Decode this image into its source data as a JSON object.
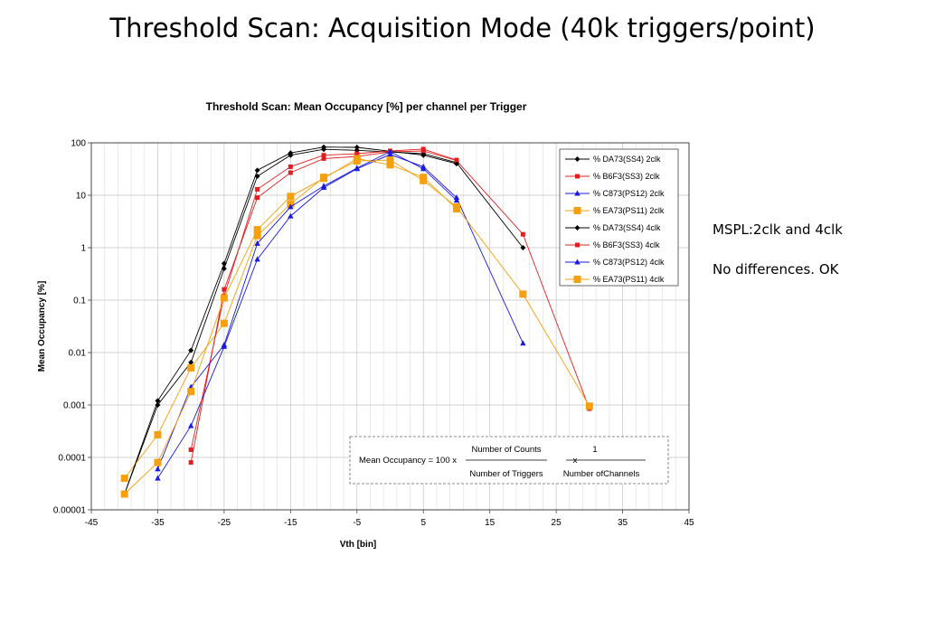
{
  "slide": {
    "title": "Threshold Scan: Acquisition Mode (40k triggers/point)",
    "notes": [
      "MSPL:2clk and 4clk",
      "No differences. OK"
    ]
  },
  "chart_data": {
    "type": "line",
    "title": "Threshold Scan: Mean Occupancy [%] per channel per Trigger",
    "xlabel": "Vth [bin]",
    "ylabel": "Mean Occupancy [%]",
    "xlim": [
      -45,
      45
    ],
    "ylim": [
      1e-05,
      100
    ],
    "yscale": "log",
    "x_ticks": [
      -45,
      -35,
      -25,
      -15,
      -5,
      5,
      15,
      25,
      35,
      45
    ],
    "x_tick_labels": [
      "-45",
      "-35",
      "-25",
      "-15",
      "-5",
      "5",
      "15",
      "25",
      "35",
      "45"
    ],
    "y_ticks": [
      1e-05,
      0.0001,
      0.001,
      0.01,
      0.1,
      1,
      10,
      100
    ],
    "y_tick_labels": [
      "0.00001",
      "0.0001",
      "0.001",
      "0.01",
      "0.1",
      "1",
      "10",
      "100"
    ],
    "grid": true,
    "legend_position": "top-right inside plot",
    "series": [
      {
        "name": "% DA73(SS4) 2clk",
        "color": "#000000",
        "marker": "diamond",
        "points": [
          [
            -40,
            2e-05
          ],
          [
            -35,
            0.001
          ],
          [
            -30,
            0.0065
          ],
          [
            -25,
            0.4
          ],
          [
            -20,
            23
          ],
          [
            -15,
            58
          ],
          [
            -10,
            75
          ],
          [
            -5,
            72
          ],
          [
            5,
            62
          ],
          [
            10,
            42
          ],
          [
            20,
            1.0
          ]
        ]
      },
      {
        "name": "% B6F3(SS3) 2clk",
        "color": "#e02020",
        "marker": "square",
        "points": [
          [
            -30,
            8e-05
          ],
          [
            -25,
            0.16
          ],
          [
            -20,
            9
          ],
          [
            -15,
            27
          ],
          [
            -10,
            50
          ],
          [
            -5,
            55
          ],
          [
            0,
            67
          ],
          [
            5,
            70
          ],
          [
            10,
            46
          ],
          [
            20,
            1.8
          ],
          [
            30,
            0.00085
          ]
        ]
      },
      {
        "name": "% C873(PS12) 2clk",
        "color": "#1a1ae0",
        "marker": "triangle",
        "points": [
          [
            -35,
            4e-05
          ],
          [
            -30,
            0.0004
          ],
          [
            -25,
            0.013
          ],
          [
            -20,
            0.6
          ],
          [
            -15,
            4
          ],
          [
            -10,
            14
          ],
          [
            -5,
            32
          ],
          [
            0,
            60
          ],
          [
            5,
            35
          ],
          [
            10,
            9
          ],
          [
            20,
            0.015
          ]
        ]
      },
      {
        "name": "% EA73(PS11) 2clk",
        "color": "#f5a00c",
        "marker": "bigsquare",
        "points": [
          [
            -40,
            4e-05
          ],
          [
            -35,
            0.00027
          ],
          [
            -30,
            0.0051
          ],
          [
            -25,
            0.036
          ],
          [
            -20,
            1.7
          ],
          [
            -15,
            6.8
          ],
          [
            -10,
            22
          ],
          [
            -5,
            45
          ],
          [
            0,
            47
          ],
          [
            5,
            19
          ],
          [
            10,
            6
          ],
          [
            20,
            0.13
          ],
          [
            30,
            0.00095
          ]
        ]
      },
      {
        "name": "% DA73(SS4) 4clk",
        "color": "#000000",
        "marker": "diamond",
        "points": [
          [
            -40,
            2e-05
          ],
          [
            -35,
            0.0012
          ],
          [
            -30,
            0.011
          ],
          [
            -25,
            0.5
          ],
          [
            -20,
            30
          ],
          [
            -15,
            64
          ],
          [
            -10,
            83
          ],
          [
            -5,
            82
          ],
          [
            5,
            58
          ],
          [
            10,
            40
          ]
        ]
      },
      {
        "name": "% B6F3(SS3) 4clk",
        "color": "#e02020",
        "marker": "square",
        "points": [
          [
            -30,
            0.00014
          ],
          [
            -25,
            0.12
          ],
          [
            -20,
            13
          ],
          [
            -15,
            35
          ],
          [
            -10,
            58
          ],
          [
            -5,
            62
          ],
          [
            0,
            70
          ],
          [
            5,
            76
          ],
          [
            10,
            47
          ]
        ]
      },
      {
        "name": "% C873(PS12) 4clk",
        "color": "#1a1ae0",
        "marker": "triangle",
        "points": [
          [
            -35,
            6e-05
          ],
          [
            -30,
            0.0022
          ],
          [
            -25,
            0.014
          ],
          [
            -20,
            1.2
          ],
          [
            -15,
            6
          ],
          [
            -10,
            15
          ],
          [
            -5,
            33
          ],
          [
            0,
            68
          ],
          [
            5,
            32
          ],
          [
            10,
            8
          ]
        ]
      },
      {
        "name": "% EA73(PS11) 4clk",
        "color": "#f5a00c",
        "marker": "bigsquare",
        "points": [
          [
            -40,
            2e-05
          ],
          [
            -35,
            8e-05
          ],
          [
            -30,
            0.0018
          ],
          [
            -25,
            0.11
          ],
          [
            -20,
            2.2
          ],
          [
            -15,
            9.5
          ],
          [
            -10,
            21
          ],
          [
            -5,
            50
          ],
          [
            0,
            38
          ],
          [
            5,
            22
          ],
          [
            10,
            5.5
          ]
        ]
      }
    ],
    "annotation": {
      "prefix": "Mean Occupancy = 100 x",
      "num1": "Number of Counts",
      "den1": "Number of Triggers",
      "times": "x",
      "num2": "1",
      "den2": "Number ofChannels"
    }
  }
}
